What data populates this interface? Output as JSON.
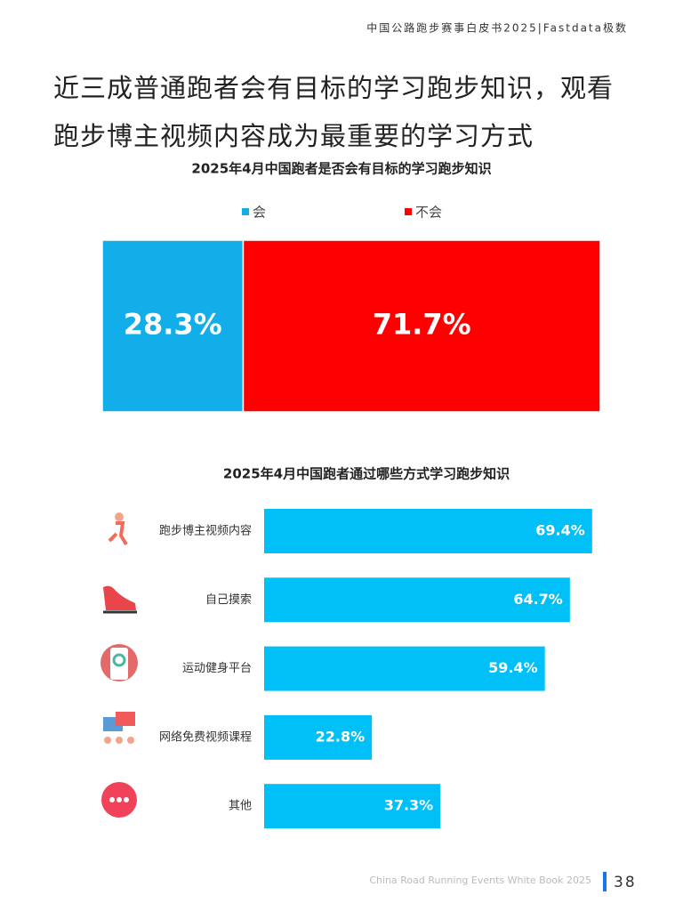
{
  "header": {
    "text": "中国公路跑步赛事白皮书2025|Fastdata极数"
  },
  "title": "近三成普通跑者会有目标的学习跑步知识，观看跑步博主视频内容成为最重要的学习方式",
  "chart_data": [
    {
      "type": "stacked-bar",
      "title": "2025年4月中国跑者是否会有目标的学习跑步知识",
      "series": [
        {
          "name": "会",
          "color": "#12aeea",
          "values": [
            28.3
          ],
          "value_labels": [
            "28.3%"
          ]
        },
        {
          "name": "不会",
          "color": "#ff0000",
          "values": [
            71.7
          ],
          "value_labels": [
            "71.7%"
          ]
        }
      ]
    },
    {
      "type": "bar",
      "title": "2025年4月中国跑者通过哪些方式学习跑步知识",
      "categories": [
        "跑步博主视频内容",
        "自己摸索",
        "运动健身平台",
        "网络免费视频课程",
        "其他"
      ],
      "values": [
        69.4,
        64.7,
        59.4,
        22.8,
        37.3
      ],
      "value_labels": [
        "69.4%",
        "64.7%",
        "59.4%",
        "22.8%",
        "37.3%"
      ],
      "color": "#00c0f7"
    }
  ],
  "footer": {
    "text": "China Road Running Events White Book 2025",
    "page": "38"
  }
}
